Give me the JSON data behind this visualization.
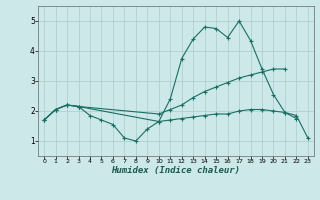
{
  "xlabel": "Humidex (Indice chaleur)",
  "bg_color": "#cce8e8",
  "grid_color": "#aacccc",
  "line_color": "#1a6e64",
  "xlim": [
    -0.5,
    23.5
  ],
  "ylim": [
    0.5,
    5.5
  ],
  "xticks": [
    0,
    1,
    2,
    3,
    4,
    5,
    6,
    7,
    8,
    9,
    10,
    11,
    12,
    13,
    14,
    15,
    16,
    17,
    18,
    19,
    20,
    21,
    22,
    23
  ],
  "yticks": [
    1,
    2,
    3,
    4,
    5
  ],
  "series": [
    {
      "x": [
        0,
        1,
        2,
        3,
        4,
        5,
        6,
        7,
        8,
        9,
        10,
        11,
        12,
        13,
        14,
        15,
        16,
        17,
        18,
        19,
        20,
        21,
        22
      ],
      "y": [
        1.7,
        2.05,
        2.2,
        2.15,
        1.85,
        1.7,
        1.55,
        1.1,
        1.0,
        1.4,
        1.65,
        2.4,
        3.75,
        4.4,
        4.8,
        4.75,
        4.45,
        5.0,
        4.35,
        3.4,
        2.55,
        1.95,
        1.75
      ]
    },
    {
      "x": [
        0,
        1,
        2,
        3,
        10,
        11,
        12,
        13,
        14,
        15,
        16,
        17,
        18,
        19,
        20,
        21
      ],
      "y": [
        1.7,
        2.05,
        2.2,
        2.15,
        1.9,
        2.05,
        2.2,
        2.45,
        2.65,
        2.8,
        2.95,
        3.1,
        3.2,
        3.3,
        3.4,
        3.4
      ]
    },
    {
      "x": [
        0,
        1,
        2,
        3,
        10,
        11,
        12,
        13,
        14,
        15,
        16,
        17,
        18,
        19,
        20,
        21,
        22,
        23
      ],
      "y": [
        1.7,
        2.05,
        2.2,
        2.15,
        1.65,
        1.7,
        1.75,
        1.8,
        1.85,
        1.9,
        1.9,
        2.0,
        2.05,
        2.05,
        2.0,
        1.95,
        1.85,
        1.1
      ]
    }
  ]
}
